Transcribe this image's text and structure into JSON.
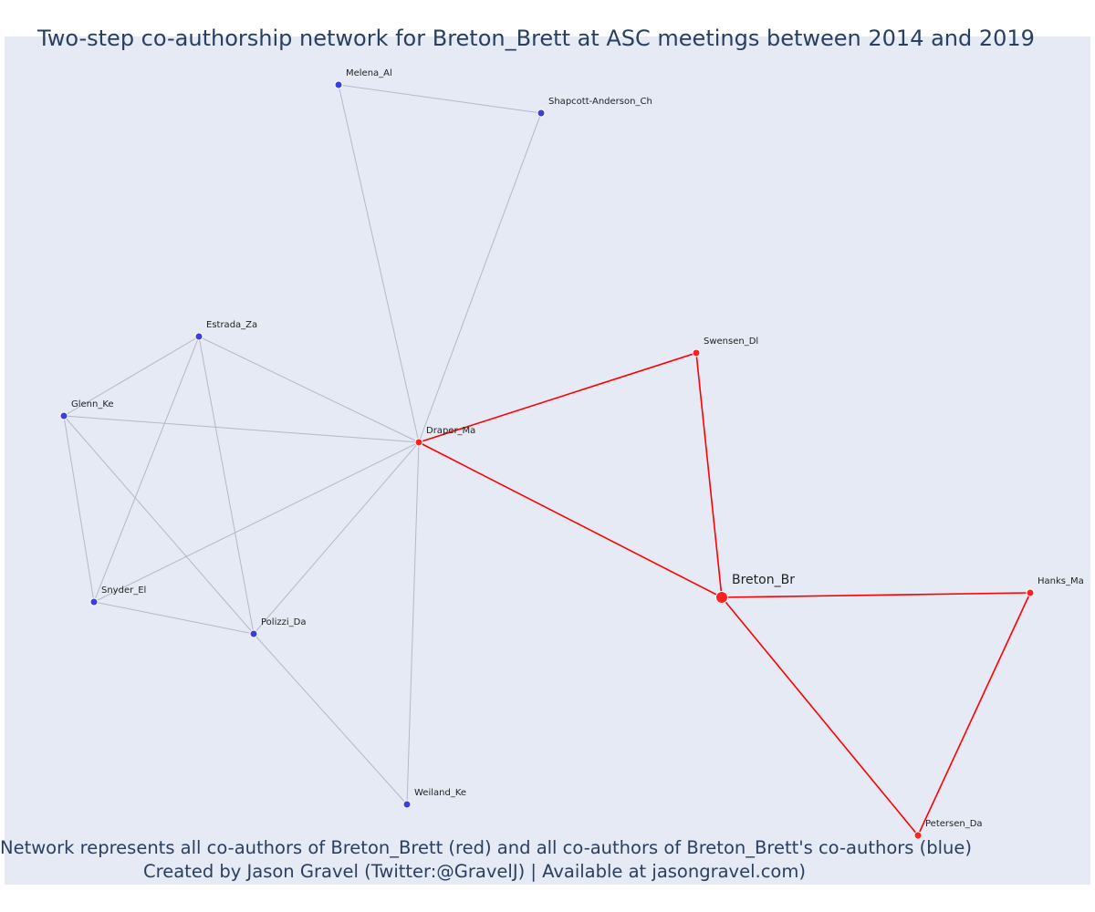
{
  "title": "Two-step co-authorship network for Breton_Brett at ASC meetings between 2014 and 2019",
  "caption": {
    "line1": "Network represents all co-authors of Breton_Brett (red) and all co-authors of Breton_Brett's co-authors (blue)",
    "line2": "Created by Jason Gravel (Twitter:@GravelJ) | Available at jasongravel.com)"
  },
  "colors": {
    "first_degree": "#ff2020",
    "second_degree": "#3a3fe0",
    "edge_first": "#ff0000",
    "edge_second": "#b5b8c8",
    "background": "#e5eaf4",
    "text": "#2a3f5f"
  },
  "nodes": [
    {
      "id": "Breton_Br",
      "group": "focal"
    },
    {
      "id": "Draper_Ma",
      "group": "coauthor"
    },
    {
      "id": "Swensen_Dl",
      "group": "coauthor"
    },
    {
      "id": "Hanks_Ma",
      "group": "coauthor"
    },
    {
      "id": "Petersen_Da",
      "group": "coauthor"
    },
    {
      "id": "Melena_Al",
      "group": "second"
    },
    {
      "id": "Shapcott-Anderson_Ch",
      "group": "second"
    },
    {
      "id": "Estrada_Za",
      "group": "second"
    },
    {
      "id": "Glenn_Ke",
      "group": "second"
    },
    {
      "id": "Snyder_El",
      "group": "second"
    },
    {
      "id": "Polizzi_Da",
      "group": "second"
    },
    {
      "id": "Weiland_Ke",
      "group": "second"
    }
  ],
  "edges": [
    [
      "Melena_Al",
      "Shapcott-Anderson_Ch"
    ],
    [
      "Melena_Al",
      "Draper_Ma"
    ],
    [
      "Shapcott-Anderson_Ch",
      "Draper_Ma"
    ],
    [
      "Estrada_Za",
      "Glenn_Ke"
    ],
    [
      "Estrada_Za",
      "Draper_Ma"
    ],
    [
      "Estrada_Za",
      "Snyder_El"
    ],
    [
      "Estrada_Za",
      "Polizzi_Da"
    ],
    [
      "Glenn_Ke",
      "Draper_Ma"
    ],
    [
      "Glenn_Ke",
      "Snyder_El"
    ],
    [
      "Glenn_Ke",
      "Polizzi_Da"
    ],
    [
      "Snyder_El",
      "Draper_Ma"
    ],
    [
      "Snyder_El",
      "Polizzi_Da"
    ],
    [
      "Polizzi_Da",
      "Draper_Ma"
    ],
    [
      "Polizzi_Da",
      "Weiland_Ke"
    ],
    [
      "Weiland_Ke",
      "Draper_Ma"
    ],
    [
      "Draper_Ma",
      "Swensen_Dl"
    ],
    [
      "Draper_Ma",
      "Breton_Br"
    ],
    [
      "Swensen_Dl",
      "Breton_Br"
    ],
    [
      "Breton_Br",
      "Hanks_Ma"
    ],
    [
      "Breton_Br",
      "Petersen_Da"
    ],
    [
      "Hanks_Ma",
      "Petersen_Da"
    ]
  ]
}
